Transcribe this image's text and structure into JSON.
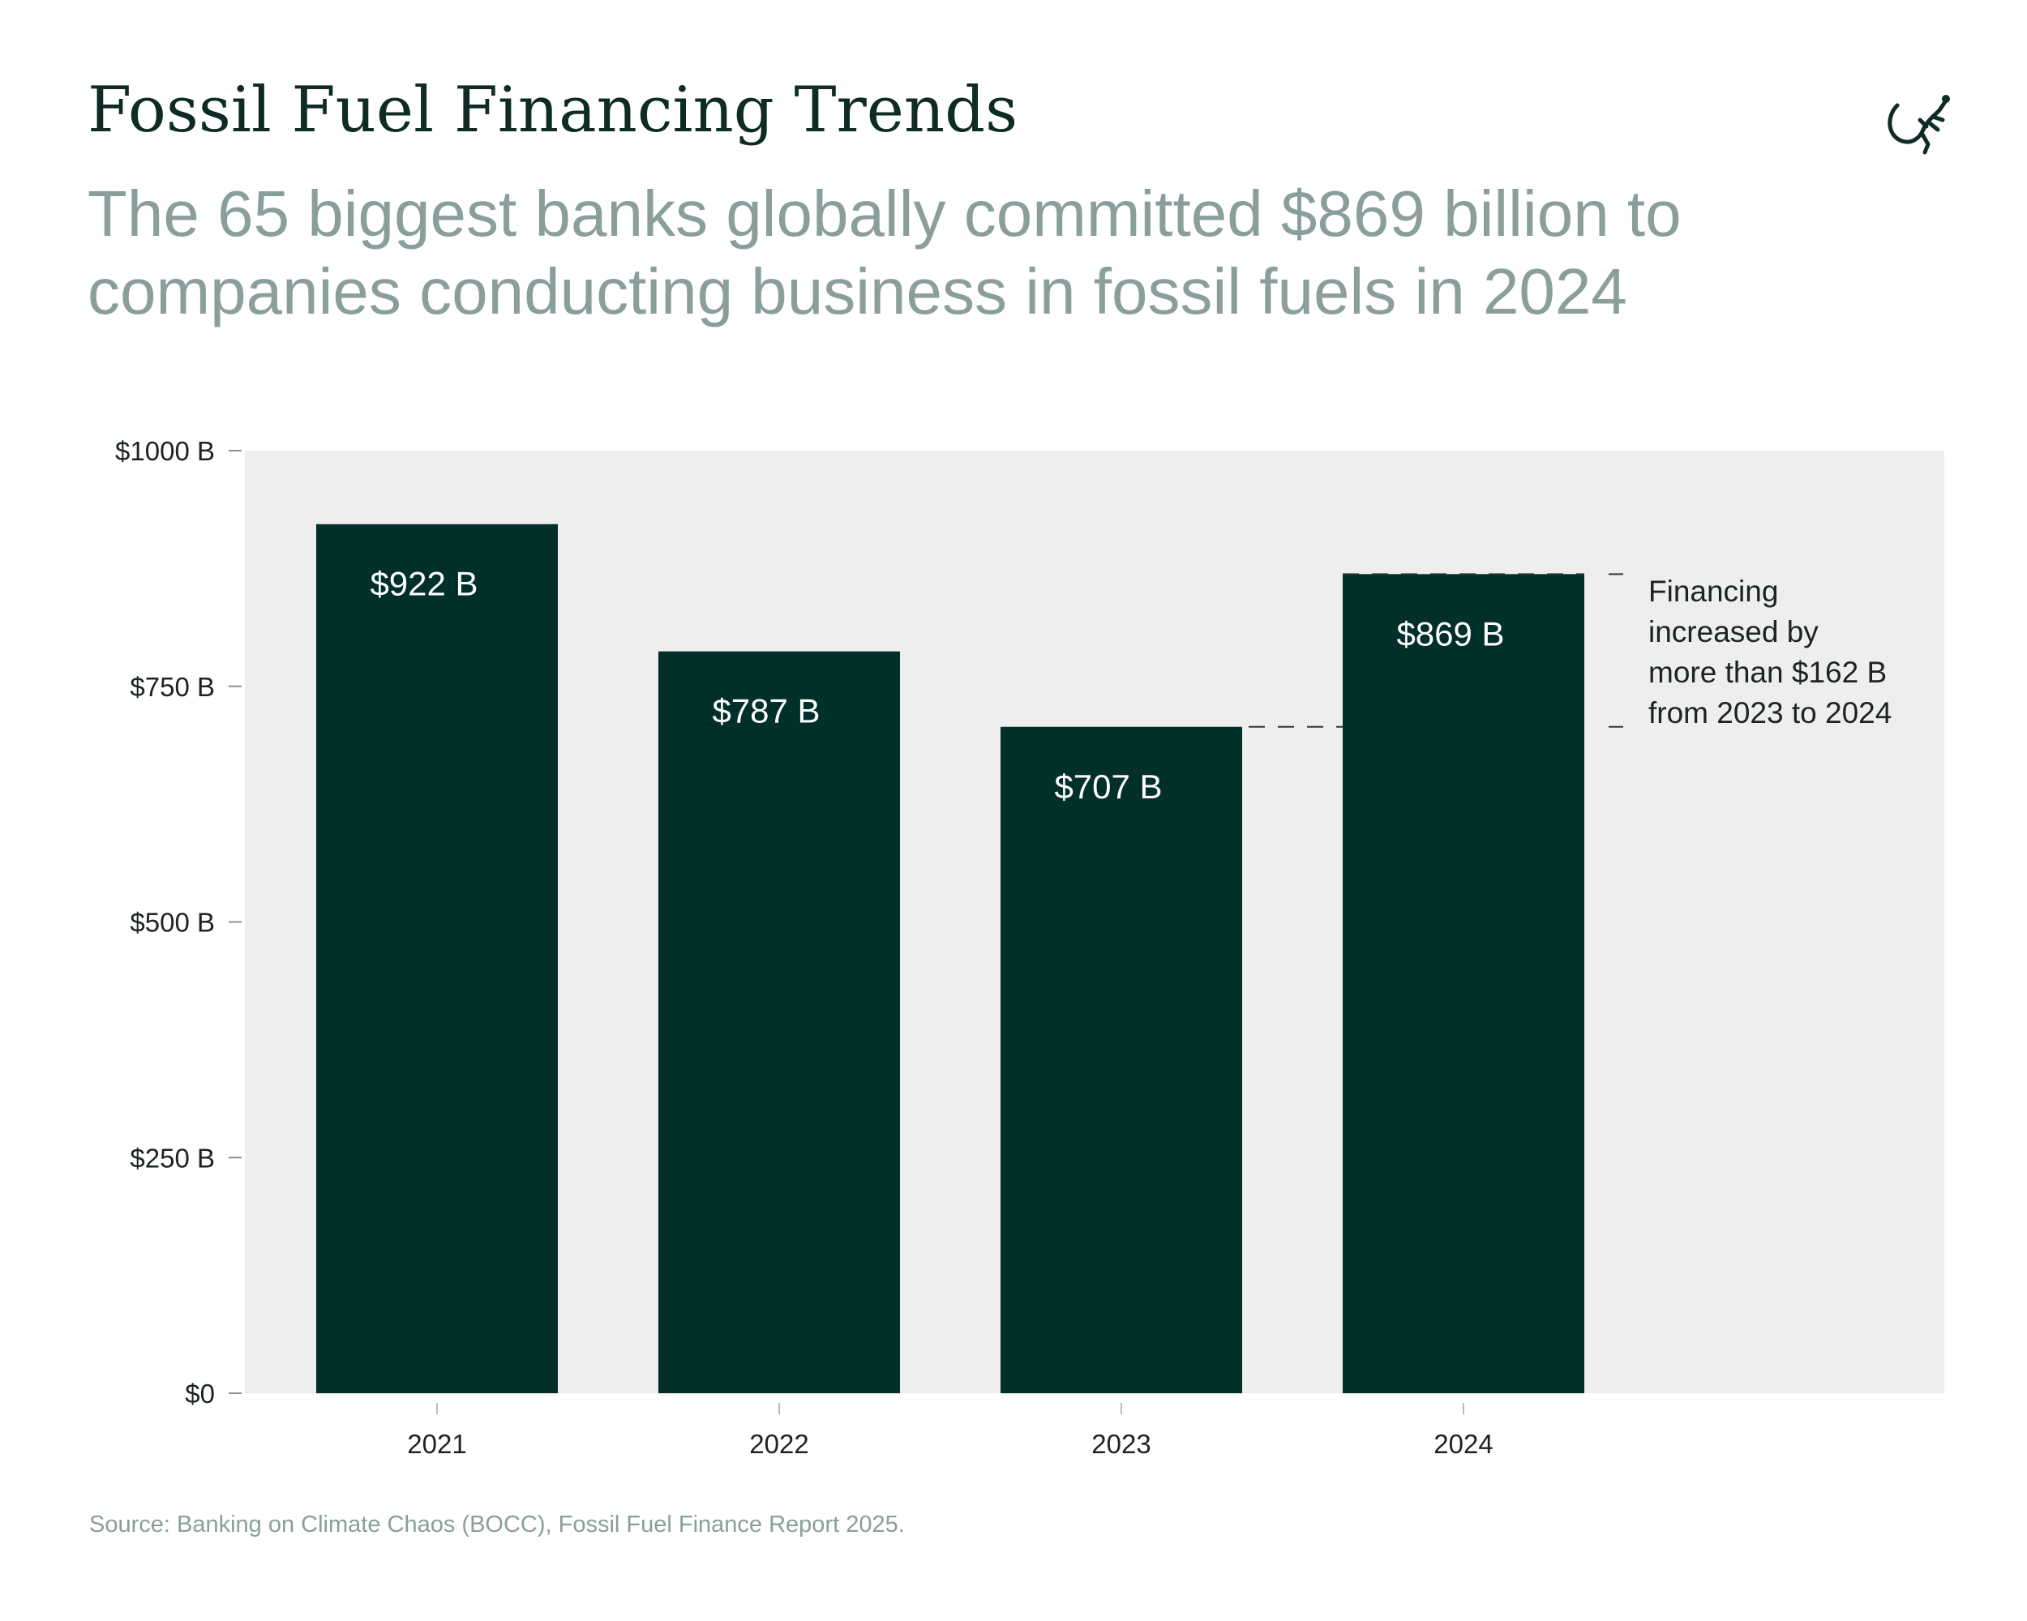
{
  "title": "Fossil Fuel Financing Trends",
  "subtitle": "The 65 biggest banks globally committed $869 billion to companies conducting business in fossil fuels in 2024",
  "source": "Source: Banking on Climate Chaos (BOCC), Fossil Fuel Finance Report 2025.",
  "logo_icon": "lizard-icon",
  "colors": {
    "bar": "#012f29",
    "plot_background": "#edeeed",
    "title": "#0e2b25",
    "subtitle": "#8a9e9b",
    "text": "#1c2321",
    "bar_label": "#ffffff"
  },
  "chart_data": {
    "type": "bar",
    "categories": [
      "2021",
      "2022",
      "2023",
      "2024"
    ],
    "values": [
      922,
      787,
      707,
      869
    ],
    "data_labels": [
      "$922 B",
      "$787 B",
      "$707 B",
      "$869 B"
    ],
    "ylim": [
      0,
      1000
    ],
    "yticks": [
      0,
      250,
      500,
      750,
      1000
    ],
    "ytick_labels": [
      "$0",
      "$250 B",
      "$500 B",
      "$750 B",
      "$1000 B"
    ],
    "grid": false,
    "annotation": {
      "from_value": 707,
      "to_value": 869,
      "lines": [
        "Financing",
        "increased by",
        "more than $162 B",
        "from 2023 to 2024"
      ]
    }
  }
}
